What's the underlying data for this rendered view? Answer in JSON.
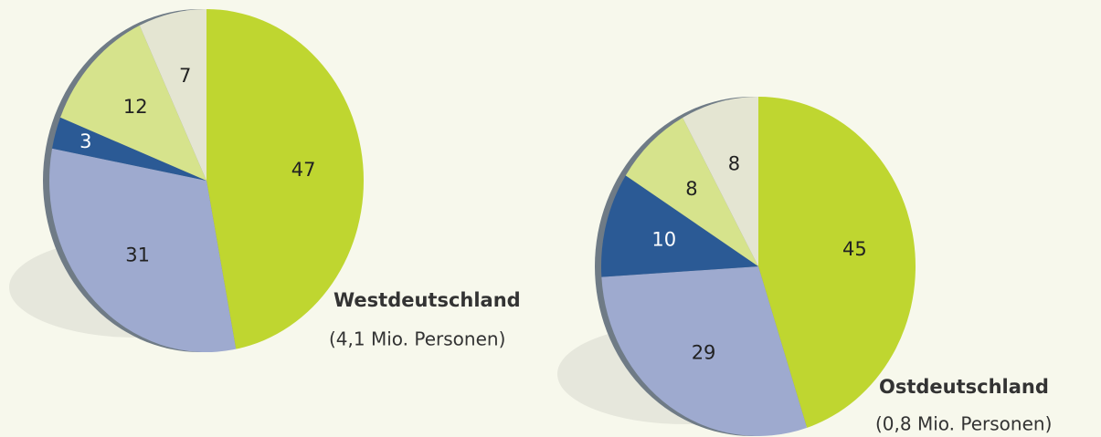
{
  "chart_data": [
    {
      "type": "pie",
      "title": "Westdeutschland",
      "subtitle": "(4,1 Mio. Personen)",
      "values": [
        47,
        31,
        3,
        12,
        7
      ],
      "colors": [
        "#bfd630",
        "#9eaacf",
        "#2b5a95",
        "#d6e38c",
        "#e4e5d2"
      ]
    },
    {
      "type": "pie",
      "title": "Ostdeutschland",
      "subtitle": "(0,8 Mio. Personen)",
      "values": [
        45,
        29,
        10,
        8,
        8
      ],
      "colors": [
        "#bfd630",
        "#9eaacf",
        "#2b5a95",
        "#d6e38c",
        "#e4e5d2"
      ]
    }
  ]
}
